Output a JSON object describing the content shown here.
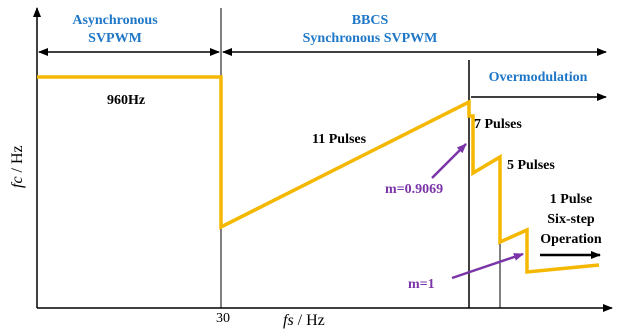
{
  "colors": {
    "curve": "#f5b800",
    "region_label": "#1f77c8",
    "annotation": "#7b35a8",
    "axis": "#000000"
  },
  "axes": {
    "y_label_italic": "fc",
    "y_label_unit": " / Hz",
    "x_label_italic": "fs",
    "x_label_unit": " / Hz",
    "x_tick": "30"
  },
  "regions": {
    "async_line1": "Asynchronous",
    "async_line2": "SVPWM",
    "sync_line1": "BBCS",
    "sync_line2": "Synchronous SVPWM",
    "overmod": "Overmodulation"
  },
  "labels": {
    "freq_960": "960Hz",
    "pulses_11": "11 Pulses",
    "pulses_7": "7 Pulses",
    "pulses_5": "5 Pulses",
    "pulse_1": "1 Pulse",
    "six_step": "Six-step",
    "operation": "Operation",
    "m_09069": "m=0.9069",
    "m_1": "m=1"
  }
}
